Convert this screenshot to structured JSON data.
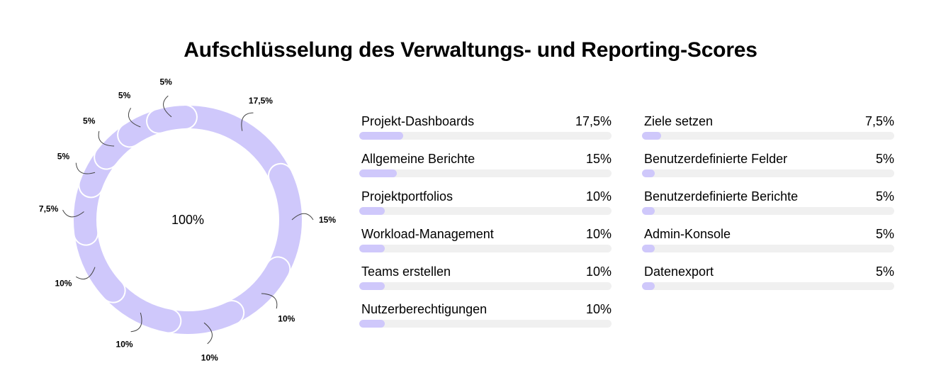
{
  "colors": {
    "accent": "#cfc8fb",
    "track": "#f0f0f0",
    "text": "#000000",
    "background": "#ffffff"
  },
  "chart_data": [
    {
      "type": "pie",
      "variant": "donut",
      "title": "Aufschlüsselung des Verwaltungs- und Reporting-Scores",
      "center_label": "100%",
      "slices": [
        {
          "value": 17.5,
          "label": "17,5%"
        },
        {
          "value": 15,
          "label": "15%"
        },
        {
          "value": 10,
          "label": "10%"
        },
        {
          "value": 10,
          "label": "10%"
        },
        {
          "value": 10,
          "label": "10%"
        },
        {
          "value": 10,
          "label": "10%"
        },
        {
          "value": 7.5,
          "label": "7,5%"
        },
        {
          "value": 5,
          "label": "5%"
        },
        {
          "value": 5,
          "label": "5%"
        },
        {
          "value": 5,
          "label": "5%"
        },
        {
          "value": 5,
          "label": "5%"
        }
      ]
    },
    {
      "type": "bar",
      "orientation": "horizontal",
      "xlim": [
        0,
        100
      ],
      "columns": [
        [
          {
            "label": "Projekt-Dashboards",
            "value": 17.5,
            "value_label": "17,5%"
          },
          {
            "label": "Allgemeine Berichte",
            "value": 15,
            "value_label": "15%"
          },
          {
            "label": "Projektportfolios",
            "value": 10,
            "value_label": "10%"
          },
          {
            "label": "Workload-Management",
            "value": 10,
            "value_label": "10%"
          },
          {
            "label": "Teams erstellen",
            "value": 10,
            "value_label": "10%"
          },
          {
            "label": "Nutzerberechtigungen",
            "value": 10,
            "value_label": "10%"
          }
        ],
        [
          {
            "label": "Ziele setzen",
            "value": 7.5,
            "value_label": "7,5%"
          },
          {
            "label": "Benutzerdefinierte Felder",
            "value": 5,
            "value_label": "5%"
          },
          {
            "label": "Benutzerdefinierte Berichte",
            "value": 5,
            "value_label": "5%"
          },
          {
            "label": "Admin-Konsole",
            "value": 5,
            "value_label": "5%"
          },
          {
            "label": "Datenexport",
            "value": 5,
            "value_label": "5%"
          }
        ]
      ]
    }
  ]
}
